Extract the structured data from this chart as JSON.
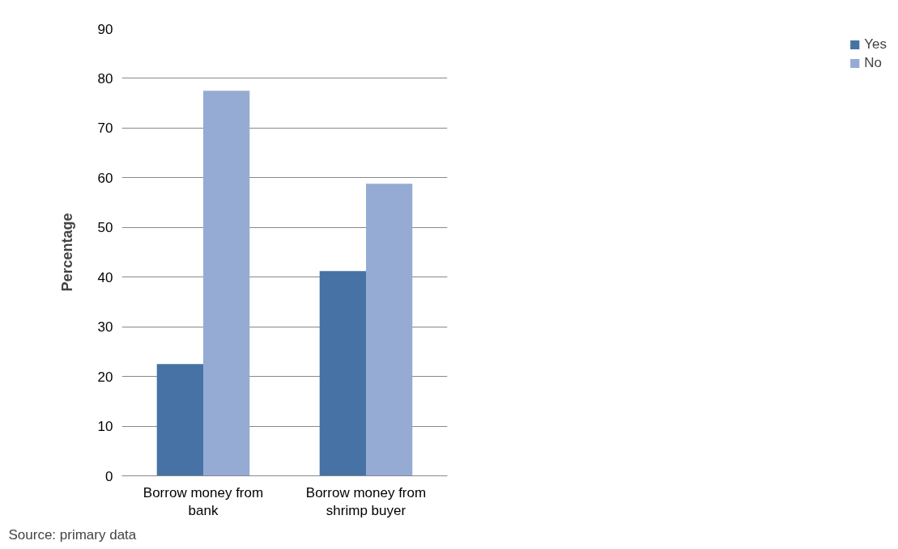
{
  "chart_data": {
    "type": "bar",
    "ylabel": "Percentage",
    "categories": [
      "Borrow money from\nbank",
      "Borrow money from\nshrimp buyer"
    ],
    "series": [
      {
        "name": "Yes",
        "color": "#4672a6",
        "values": [
          22.5,
          41.2
        ]
      },
      {
        "name": "No",
        "color": "#95abd3",
        "values": [
          77.5,
          58.8
        ]
      }
    ],
    "ylim": [
      0,
      90
    ],
    "yticks": [
      0,
      10,
      20,
      30,
      40,
      50,
      60,
      70,
      80,
      90
    ],
    "grid": "y",
    "legend": "right",
    "annotations": [
      "Source: primary data"
    ]
  }
}
